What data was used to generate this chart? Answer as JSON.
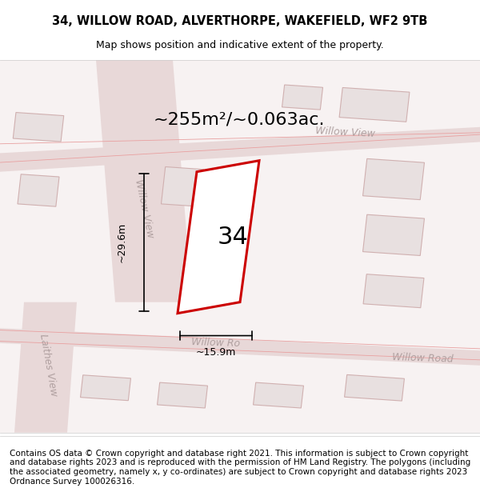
{
  "title_line1": "34, WILLOW ROAD, ALVERTHORPE, WAKEFIELD, WF2 9TB",
  "title_line2": "Map shows position and indicative extent of the property.",
  "footer_text": "Contains OS data © Crown copyright and database right 2021. This information is subject to Crown copyright and database rights 2023 and is reproduced with the permission of HM Land Registry. The polygons (including the associated geometry, namely x, y co-ordinates) are subject to Crown copyright and database rights 2023 Ordnance Survey 100026316.",
  "area_label": "~255m²/~0.063ac.",
  "number_label": "34",
  "dim_height": "~29.6m",
  "dim_width": "~15.9m",
  "street_willow_view_top": "Willow View",
  "street_willow_view_left": "Willow View",
  "street_willow_road_bottom": "Willow Ro",
  "street_willow_road_right": "Willow Road",
  "street_laithes_view": "Laithes View",
  "bg_color": "#f5f0f0",
  "map_bg": "#f8f5f5",
  "road_color": "#f0c8c8",
  "road_line_color": "#e8a0a0",
  "building_fill": "#e8e0e0",
  "building_stroke": "#d0b0b0",
  "highlight_fill": "#f8f8f8",
  "highlight_stroke": "#cc0000",
  "dim_line_color": "#000000",
  "text_color": "#333333",
  "street_text_color": "#b0a0a0",
  "title_fontsize": 10.5,
  "footer_fontsize": 7.5,
  "area_fontsize": 16,
  "number_fontsize": 22,
  "dim_fontsize": 9,
  "street_fontsize": 9
}
